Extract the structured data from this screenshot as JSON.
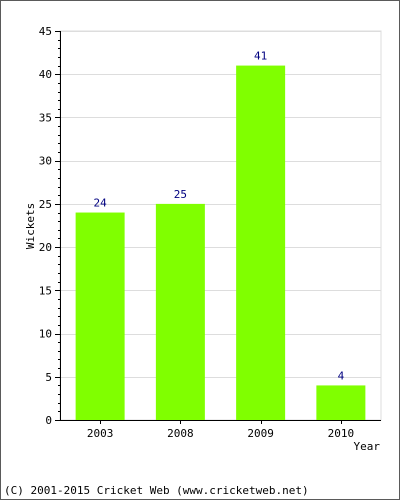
{
  "chart_data": {
    "type": "bar",
    "categories": [
      "2003",
      "2008",
      "2009",
      "2010"
    ],
    "values": [
      24,
      25,
      41,
      4
    ],
    "data_labels": [
      "24",
      "25",
      "41",
      "4"
    ],
    "xlabel": "Year",
    "ylabel": "Wickets",
    "ylim": [
      0,
      45
    ],
    "yticks": [
      0,
      5,
      10,
      15,
      20,
      25,
      30,
      35,
      40,
      45
    ],
    "grid": true,
    "bar_color": "#80ff00",
    "label_color": "#000080",
    "grid_color": "#dddddd"
  },
  "footer": {
    "credit": "(C) 2001-2015 Cricket Web (www.cricketweb.net)"
  }
}
